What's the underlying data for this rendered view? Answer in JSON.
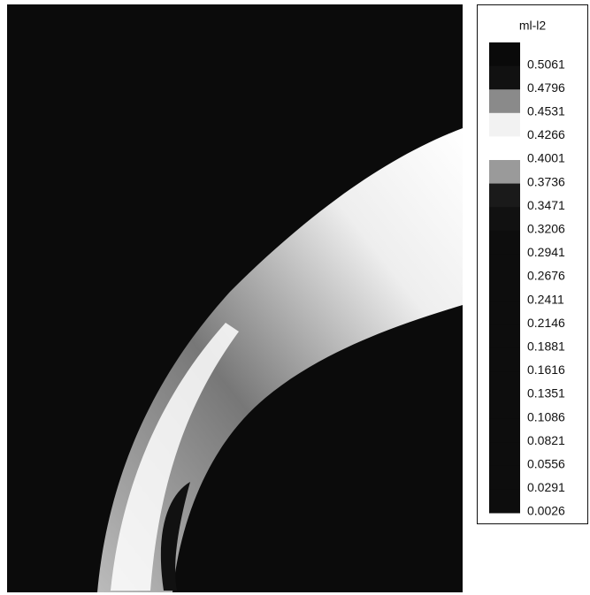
{
  "chart_data": {
    "type": "contour",
    "title": "ml-l2",
    "levels": [
      0.5061,
      0.4796,
      0.4531,
      0.4266,
      0.4001,
      0.3736,
      0.3471,
      0.3206,
      0.2941,
      0.2676,
      0.2411,
      0.2146,
      0.1881,
      0.1616,
      0.1351,
      0.1086,
      0.0821,
      0.0556,
      0.0291,
      0.0026
    ],
    "colors": [
      "#0a0a0a",
      "#111111",
      "#8a8a8a",
      "#f2f2f2",
      "#ffffff",
      "#9a9a9a",
      "#1a1a1a",
      "#111111",
      "#0d0d0d",
      "#0d0d0d",
      "#0d0d0d",
      "#0d0d0d",
      "#0d0d0d",
      "#0d0d0d",
      "#0d0d0d",
      "#0d0d0d",
      "#0d0d0d",
      "#0d0d0d",
      "#0d0d0d",
      "#0d0d0d"
    ]
  }
}
